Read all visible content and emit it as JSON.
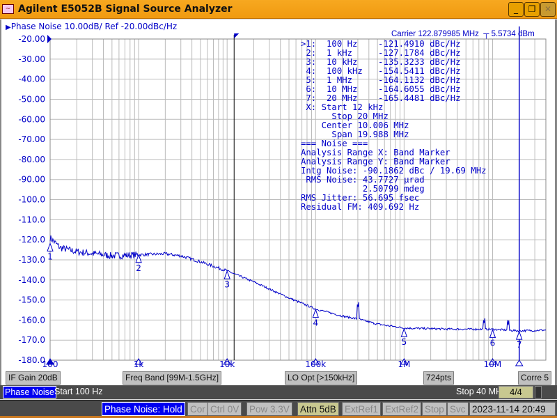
{
  "window": {
    "title": "Agilent E5052B Signal Source Analyzer",
    "minimize": "_",
    "restore": "❐",
    "close": "✕"
  },
  "trace": {
    "title": "Phase Noise 10.00dB/ Ref -20.00dBc/Hz",
    "carrier": "Carrier 122.879985 MHz",
    "carrier_power": "5.5734 dBm"
  },
  "marker_table": [
    ">1:  100 Hz    -121.4910 dBc/Hz",
    " 2:  1 kHz     -127.1784 dBc/Hz",
    " 3:  10 kHz    -135.3233 dBc/Hz",
    " 4:  100 kHz   -154.5411 dBc/Hz",
    " 5:  1 MHz     -164.1132 dBc/Hz",
    " 6:  10 MHz    -164.6055 dBc/Hz",
    " 7:  20 MHz    -165.4481 dBc/Hz",
    " X: Start 12 kHz",
    "      Stop 20 MHz",
    "    Center 10.006 MHz",
    "      Span 19.988 MHz",
    "=== Noise ===",
    "Analysis Range X: Band Marker",
    "Analysis Range Y: Band Marker",
    "Intg Noise: -90.1862 dBc / 19.69 MHz",
    " RMS Noise: 43.7727 µrad",
    "            2.50799 mdeg",
    "RMS Jitter: 56.695 fsec",
    "Residual FM: 409.692 Hz"
  ],
  "chart_data": {
    "type": "line",
    "xscale": "log",
    "xlim": [
      100,
      40000000
    ],
    "ylim": [
      -180,
      -20
    ],
    "yticks": [
      "-20.00",
      "-30.00",
      "-40.00",
      "-50.00",
      "-60.00",
      "-70.00",
      "-80.00",
      "-90.00",
      "-100.0",
      "-110.0",
      "-120.0",
      "-130.0",
      "-140.0",
      "-150.0",
      "-160.0",
      "-170.0",
      "-180.0"
    ],
    "xticks": [
      {
        "f": 100,
        "label": "100"
      },
      {
        "f": 1000,
        "label": "1k"
      },
      {
        "f": 10000,
        "label": "10k"
      },
      {
        "f": 100000,
        "label": "100k"
      },
      {
        "f": 1000000,
        "label": "1M"
      },
      {
        "f": 10000000,
        "label": "10M"
      }
    ],
    "grid": true,
    "trace_color": "#0000c8",
    "series": [
      {
        "x": [
          100,
          130,
          200,
          500,
          1000,
          2000,
          3000,
          5000,
          10000,
          20000,
          50000,
          100000,
          200000,
          300000,
          500000,
          1000000,
          3000000,
          10000000,
          20000000,
          40000000
        ],
        "y": [
          -119,
          -124,
          -126,
          -128,
          -127.5,
          -127,
          -128,
          -131,
          -135.5,
          -141,
          -149,
          -154.5,
          -158,
          -159.5,
          -162,
          -164,
          -164.5,
          -164.6,
          -165.4,
          -165
        ]
      }
    ],
    "spurs": [
      {
        "x": 300000,
        "y": -154
      },
      {
        "x": 8000000,
        "y": -162
      },
      {
        "x": 15000000,
        "y": -162.5
      }
    ],
    "markers": [
      {
        "id": "1",
        "f": 100,
        "y": -121.491
      },
      {
        "id": "2",
        "f": 1000,
        "y": -127.1784
      },
      {
        "id": "3",
        "f": 10000,
        "y": -135.3233
      },
      {
        "id": "4",
        "f": 100000,
        "y": -154.5411
      },
      {
        "id": "5",
        "f": 1000000,
        "y": -164.1132
      },
      {
        "id": "6",
        "f": 10000000,
        "y": -164.6055
      },
      {
        "id": "7",
        "f": 20000000,
        "y": -165.4481
      }
    ],
    "band_marker": {
      "start": 12000,
      "stop": 20000000
    }
  },
  "softkeys": {
    "if_gain": "IF Gain 20dB",
    "freq_band": "Freq Band [99M-1.5GHz]",
    "lo_opt": "LO Opt [>150kHz]",
    "points": "724pts",
    "corre": "Corre 5"
  },
  "channel": {
    "mode": "Phase Noise",
    "start": "Start 100 Hz",
    "stop": "Stop 40 MHz",
    "page": "4/4"
  },
  "status": {
    "state": "Phase Noise: Hold",
    "cor": "Cor",
    "ctrl": "Ctrl  0V",
    "pow": "Pow  3.3V",
    "attn": "Attn 5dB",
    "extref1": "ExtRef1",
    "extref2": "ExtRef2",
    "stop": "Stop",
    "svc": "Svc",
    "datetime": "2023-11-14 20:49"
  }
}
